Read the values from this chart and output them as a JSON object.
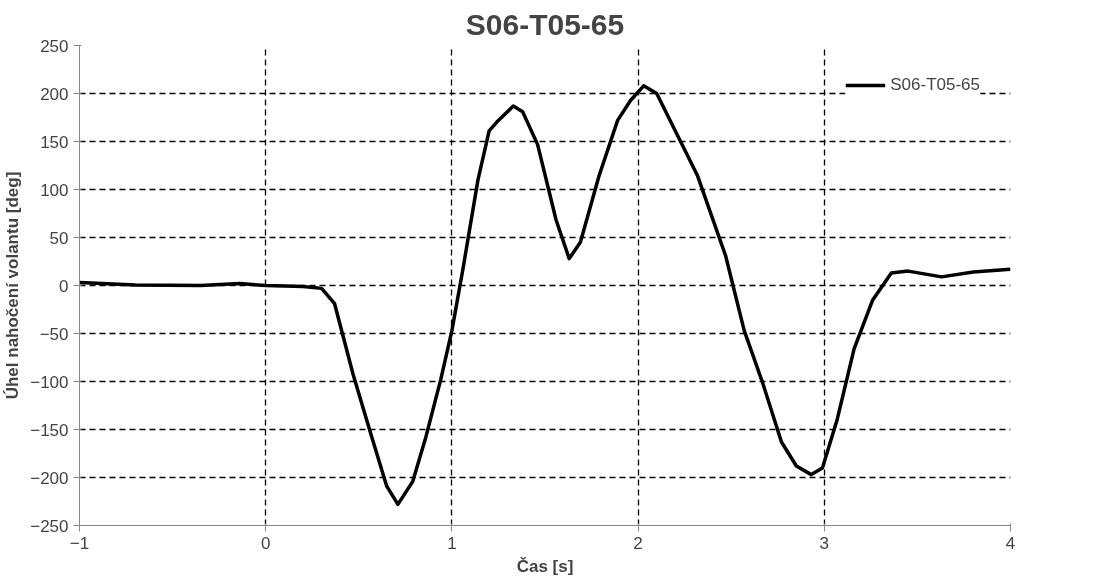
{
  "chart_data": {
    "type": "line",
    "title": "S06-T05-65",
    "xlabel": "Čas [s]",
    "ylabel": "Úhel nahočení volantu [deg]",
    "series": [
      {
        "name": "S06-T05-65",
        "color": "#000000",
        "x": [
          -1,
          -0.7,
          -0.35,
          -0.14,
          0,
          0.2,
          0.3,
          0.37,
          0.47,
          0.57,
          0.65,
          0.71,
          0.79,
          0.86,
          0.94,
          1.0,
          1.06,
          1.14,
          1.2,
          1.24,
          1.33,
          1.38,
          1.46,
          1.56,
          1.63,
          1.69,
          1.79,
          1.89,
          1.96,
          2.03,
          2.1,
          2.2,
          2.32,
          2.47,
          2.57,
          2.67,
          2.77,
          2.85,
          2.93,
          2.99,
          3.07,
          3.16,
          3.26,
          3.36,
          3.45,
          3.63,
          3.8,
          4.0
        ],
        "values": [
          3,
          0.5,
          0,
          2,
          0,
          -1,
          -3,
          -19,
          -93,
          -158,
          -209,
          -228,
          -204,
          -158,
          -98,
          -47,
          18,
          110,
          161,
          170,
          187,
          181,
          147,
          68,
          28,
          45,
          114,
          172,
          193,
          208,
          200,
          161,
          114,
          31,
          -47,
          -102,
          -163,
          -188,
          -197,
          -190,
          -139,
          -66,
          -15,
          13,
          15,
          9,
          14,
          17
        ]
      }
    ],
    "xlim": [
      -1,
      4
    ],
    "xticks": [
      -1,
      0,
      1,
      2,
      3,
      4
    ],
    "ylim": [
      -250,
      250
    ],
    "yticks": [
      -250,
      -200,
      -150,
      -100,
      -50,
      0,
      50,
      100,
      150,
      200,
      250
    ],
    "grid": true,
    "legend": "top right",
    "marker": "none",
    "line_style": "solid"
  }
}
